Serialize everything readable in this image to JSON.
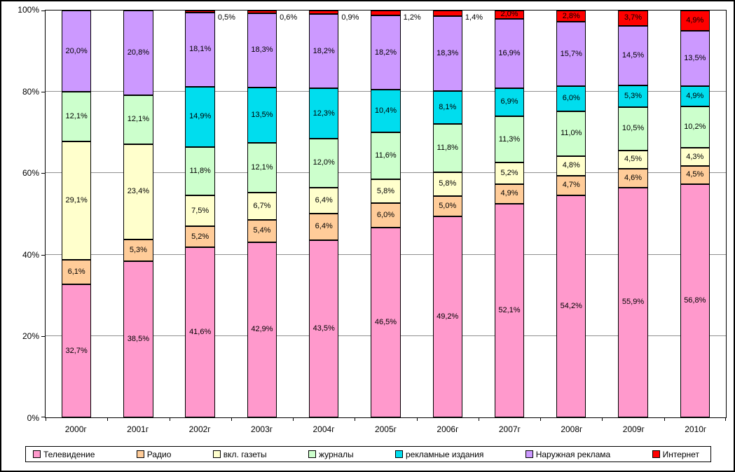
{
  "chart_data": {
    "type": "bar",
    "stacked": true,
    "percent_stacked": true,
    "title": "",
    "xlabel": "",
    "ylabel": "",
    "ylim": [
      0,
      100
    ],
    "grid": true,
    "legend_position": "bottom",
    "inside_label_min": 1.7,
    "y_ticks": [
      "0%",
      "20%",
      "40%",
      "60%",
      "80%",
      "100%"
    ],
    "categories": [
      "2000г",
      "2001г",
      "2002г",
      "2003г",
      "2004г",
      "2005г",
      "2006г",
      "2007г",
      "2008г",
      "2009г",
      "2010г"
    ],
    "series": [
      {
        "name": "Телевидение",
        "color": "#FF99CC",
        "values": [
          32.7,
          38.5,
          41.6,
          42.9,
          43.5,
          46.5,
          49.2,
          52.1,
          54.2,
          55.9,
          56.8
        ]
      },
      {
        "name": "Радио",
        "color": "#FFCC99",
        "values": [
          6.1,
          5.3,
          5.2,
          5.4,
          6.4,
          6.0,
          5.0,
          4.9,
          4.7,
          4.6,
          4.5
        ]
      },
      {
        "name": "вкл. газеты",
        "color": "#FFFFCC",
        "values": [
          29.1,
          23.4,
          7.5,
          6.7,
          6.4,
          5.8,
          5.8,
          5.2,
          4.8,
          4.5,
          4.3
        ]
      },
      {
        "name": "журналы",
        "color": "#CCFFCC",
        "values": [
          12.1,
          12.1,
          11.8,
          12.1,
          12.0,
          11.6,
          11.8,
          11.3,
          11.0,
          10.5,
          10.2
        ]
      },
      {
        "name": "рекламные издания",
        "color": "#00DDEE",
        "values": [
          null,
          null,
          14.9,
          13.5,
          12.3,
          10.4,
          8.1,
          6.9,
          6.0,
          5.3,
          4.9
        ]
      },
      {
        "name": "Наружная реклама",
        "color": "#CC99FF",
        "values": [
          20.0,
          20.8,
          18.1,
          18.3,
          18.2,
          18.2,
          18.3,
          16.9,
          15.7,
          14.5,
          13.5
        ]
      },
      {
        "name": "Интернет",
        "color": "#FF0000",
        "values": [
          null,
          null,
          0.5,
          0.6,
          0.9,
          1.2,
          1.4,
          2.0,
          2.8,
          3.7,
          4.9
        ]
      }
    ]
  }
}
